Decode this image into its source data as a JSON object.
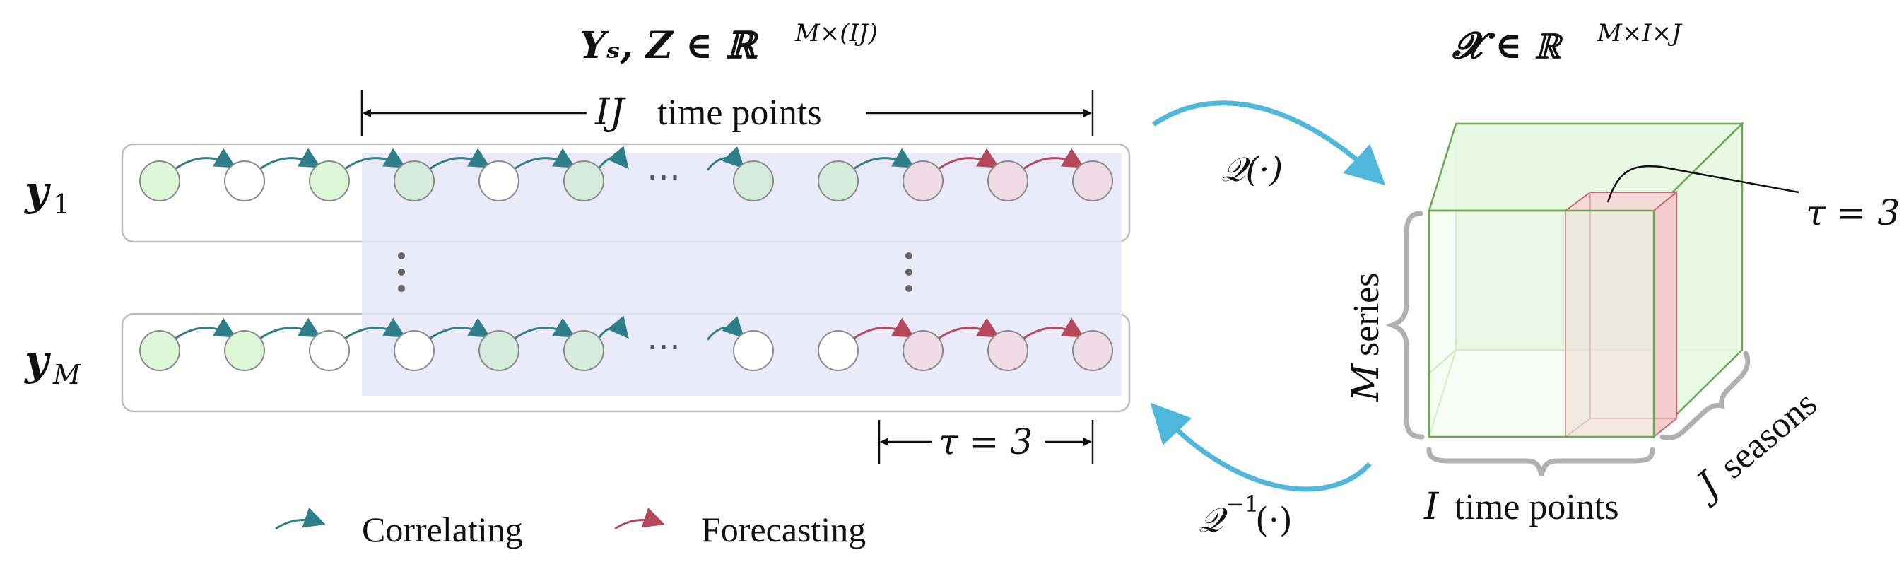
{
  "left_title": "𝒀ₛ, 𝒁 ∈ ℝ",
  "left_title_sup": "M×(IJ)",
  "right_title": "𝓧 ∈ ℝ",
  "right_title_sup": "M×I×J",
  "span_label_math": "IJ",
  "span_label_text": "time points",
  "row1_label": "𝒚",
  "row1_sub": "1",
  "rowM_label": "𝒚",
  "rowM_sub": "M",
  "ellipsis": "⋯",
  "vdots": "⋮",
  "tau_bottom": "τ = 3",
  "tau_cube": "τ = 3",
  "q_forward": "𝒬(·)",
  "q_inverse": "𝒬",
  "q_inverse_sup": "−1",
  "q_inverse_arg": "(·)",
  "cube_m_label": "M",
  "cube_m_text": "series",
  "cube_i_label": "I",
  "cube_i_text": "time points",
  "cube_j_label": "J",
  "cube_j_text": "seasons",
  "legend": {
    "correlating": "Correlating",
    "forecasting": "Forecasting"
  },
  "colors": {
    "correlating_arrow": "#2f7f8a",
    "forecasting_arrow": "#b5485a",
    "node_green": "#dcf7d6",
    "node_teal": "#d3ecdc",
    "node_pink": "#efdbe6",
    "node_white": "#ffffff",
    "highlight": "#e6e6f8",
    "map_arrow": "#4fb6dc",
    "cube_stroke": "#6aa84f",
    "cube_fill": "#e6f8e1",
    "slice_fill": "#f6d9d9",
    "slice_stroke": "#c9686a",
    "brace": "#b0b0b0"
  },
  "rows": [
    {
      "name": "row-1",
      "nodes": [
        "green",
        "white",
        "green",
        "teal",
        "white",
        "teal",
        "teal",
        "teal",
        "pink",
        "pink",
        "pink"
      ],
      "arrows": [
        "c",
        "c",
        "c",
        "c",
        "c",
        "c",
        "c",
        "c",
        "f",
        "f",
        "f"
      ]
    },
    {
      "name": "row-M",
      "nodes": [
        "green",
        "green",
        "white",
        "white",
        "teal",
        "teal",
        "white",
        "white",
        "pink",
        "pink",
        "pink"
      ],
      "arrows": [
        "c",
        "c",
        "c",
        "c",
        "c",
        "c",
        "c",
        "f",
        "f",
        "f",
        "f"
      ]
    }
  ]
}
